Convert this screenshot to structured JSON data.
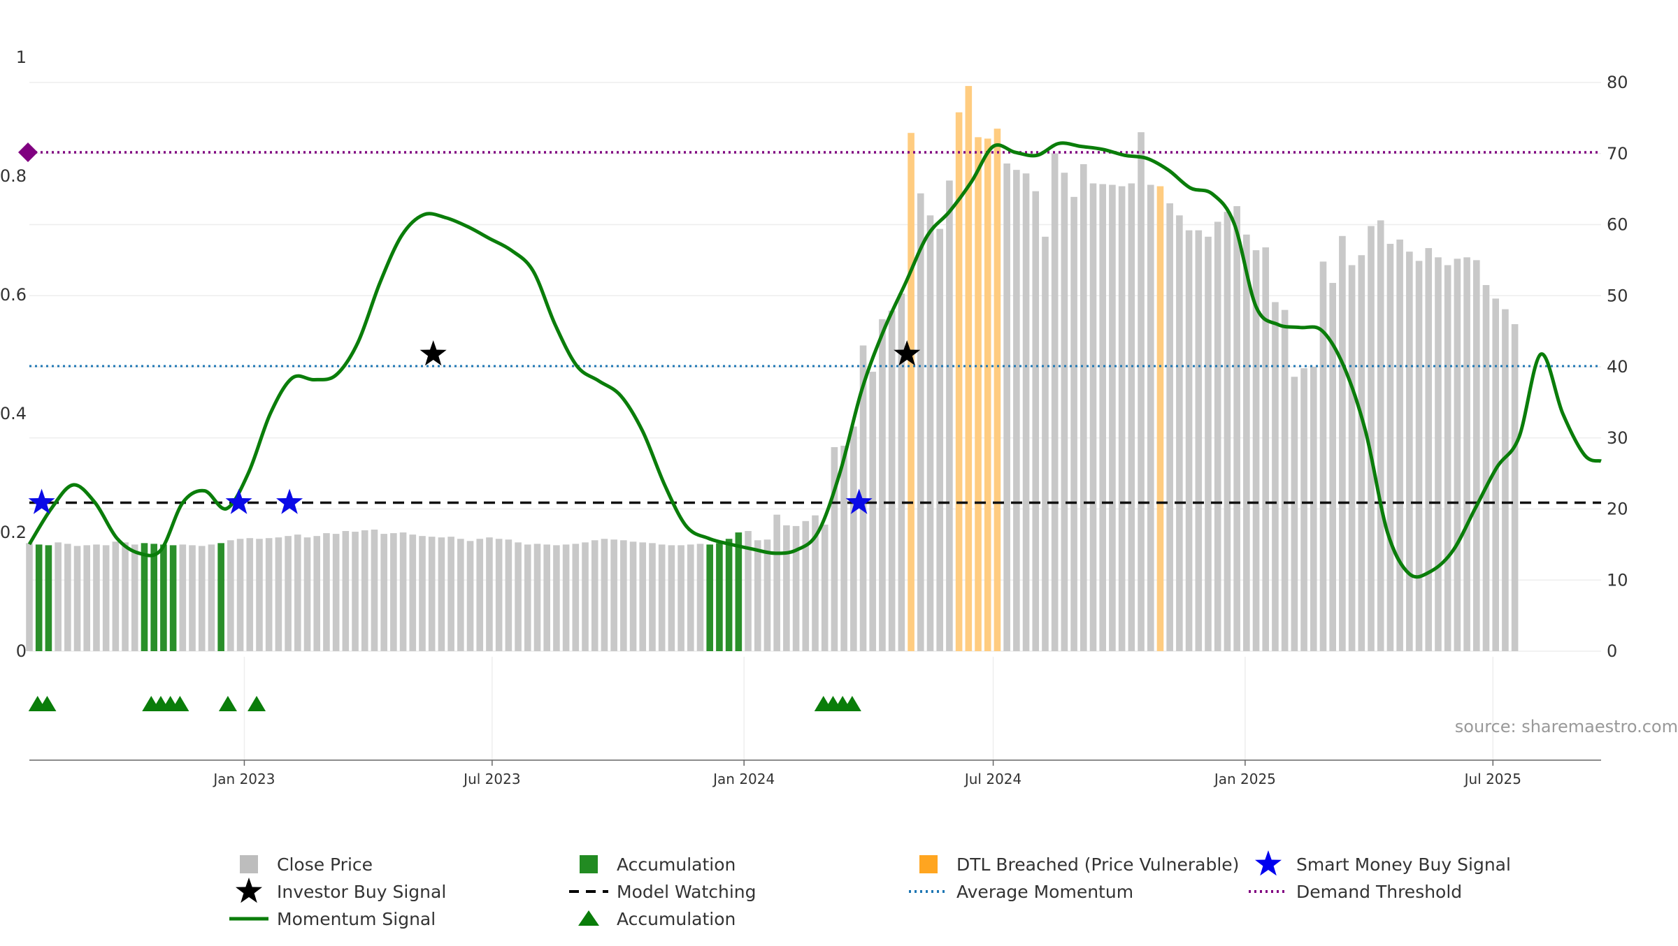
{
  "chart_data": {
    "type": "bar",
    "title": "",
    "source": "source: sharemaestro.com",
    "left_axis": {
      "ticks": [
        "0",
        "0.2",
        "0.4",
        "0.6",
        "0.8",
        "1"
      ],
      "values": [
        0,
        0.2,
        0.4,
        0.6,
        0.8,
        1
      ],
      "ylim": [
        0,
        1
      ]
    },
    "right_axis": {
      "ticks": [
        "0",
        "10",
        "20",
        "30",
        "40",
        "50",
        "60",
        "70",
        "80"
      ],
      "values": [
        0,
        10,
        20,
        30,
        40,
        50,
        60,
        70,
        80
      ],
      "ylim": [
        0,
        84
      ]
    },
    "x_axis": {
      "range": [
        "2022-07-28",
        "2025-09-18"
      ],
      "ticks": [
        {
          "label": "Jan 2023",
          "date": "2023-01-01"
        },
        {
          "label": "Jul 2023",
          "date": "2023-07-01"
        },
        {
          "label": "Jan 2024",
          "date": "2024-01-01"
        },
        {
          "label": "Jul 2024",
          "date": "2024-07-01"
        },
        {
          "label": "Jan 2025",
          "date": "2025-01-01"
        },
        {
          "label": "Jul 2025",
          "date": "2025-07-01"
        }
      ]
    },
    "bars": {
      "start_date": "2022-07-28",
      "step_days": 7,
      "close_price": [
        15.2,
        15.0,
        14.9,
        15.3,
        15.1,
        14.8,
        14.9,
        15.0,
        14.9,
        15.4,
        15.3,
        15.0,
        15.2,
        15.1,
        15.0,
        14.9,
        15.0,
        14.9,
        14.8,
        15.0,
        15.2,
        15.6,
        15.8,
        15.9,
        15.8,
        15.9,
        16.0,
        16.2,
        16.4,
        16.0,
        16.2,
        16.6,
        16.5,
        16.9,
        16.8,
        17.0,
        17.1,
        16.5,
        16.6,
        16.7,
        16.4,
        16.2,
        16.1,
        16.0,
        16.1,
        15.8,
        15.5,
        15.8,
        16.0,
        15.8,
        15.7,
        15.3,
        15.0,
        15.1,
        15.0,
        14.9,
        15.0,
        15.1,
        15.3,
        15.6,
        15.8,
        15.7,
        15.6,
        15.4,
        15.3,
        15.2,
        15.0,
        14.9,
        14.9,
        15.0,
        15.1,
        15.0,
        15.2,
        15.8,
        16.7,
        16.9,
        15.6,
        15.7,
        19.2,
        17.7,
        17.6,
        18.3,
        19.1,
        17.8,
        28.7,
        28.9,
        31.6,
        43.0,
        39.3,
        46.7,
        47.9,
        50.3,
        72.9,
        64.4,
        61.3,
        59.4,
        66.2,
        75.8,
        79.5,
        72.3,
        72.1,
        73.5,
        68.6,
        67.7,
        67.2,
        64.7,
        58.3,
        70.0,
        67.3,
        63.9,
        68.5,
        65.8,
        65.7,
        65.6,
        65.4,
        65.8,
        73.0,
        65.6,
        65.4,
        63.0,
        61.3,
        59.2,
        59.2,
        58.3,
        60.4,
        61.8,
        62.6,
        58.6,
        56.4,
        56.8,
        49.1,
        48.0,
        38.6,
        39.8,
        40.0,
        54.8,
        51.8,
        58.4,
        54.3,
        55.7,
        59.8,
        60.6,
        57.3,
        57.9,
        56.2,
        54.9,
        56.7,
        55.4,
        54.3,
        55.2,
        55.4,
        55.0,
        51.5,
        49.6,
        48.1,
        46.0
      ],
      "accumulation_bars": [
        1,
        2,
        12,
        13,
        14,
        15,
        20,
        71,
        72,
        73,
        74
      ],
      "dtl_breached_bars": [
        92,
        97,
        98,
        99,
        100,
        101,
        118
      ]
    },
    "momentum_signal": {
      "dates": [
        "2022-07-28",
        "2022-08-13",
        "2022-08-29",
        "2022-09-14",
        "2022-09-30",
        "2022-10-16",
        "2022-11-01",
        "2022-11-17",
        "2022-12-03",
        "2022-12-19",
        "2023-01-04",
        "2023-01-20",
        "2023-02-05",
        "2023-02-21",
        "2023-03-09",
        "2023-03-25",
        "2023-04-10",
        "2023-04-26",
        "2023-05-12",
        "2023-05-28",
        "2023-06-13",
        "2023-06-29",
        "2023-07-15",
        "2023-07-31",
        "2023-08-16",
        "2023-09-01",
        "2023-09-17",
        "2023-10-03",
        "2023-10-19",
        "2023-11-04",
        "2023-11-20",
        "2023-12-06",
        "2023-12-22",
        "2024-01-07",
        "2024-01-23",
        "2024-02-08",
        "2024-02-24",
        "2024-03-11",
        "2024-03-27",
        "2024-04-12",
        "2024-04-28",
        "2024-05-14",
        "2024-05-30",
        "2024-06-15",
        "2024-07-01",
        "2024-07-17",
        "2024-08-02",
        "2024-08-18",
        "2024-09-03",
        "2024-09-19",
        "2024-10-05",
        "2024-10-21",
        "2024-11-06",
        "2024-11-22",
        "2024-12-08",
        "2024-12-24",
        "2025-01-09",
        "2025-01-25",
        "2025-02-10",
        "2025-02-26",
        "2025-03-14",
        "2025-03-30",
        "2025-04-15",
        "2025-05-01",
        "2025-05-17",
        "2025-06-02",
        "2025-06-18",
        "2025-07-04",
        "2025-07-20",
        "2025-08-05",
        "2025-08-21",
        "2025-09-06",
        "2025-09-18"
      ],
      "values": [
        0.18,
        0.24,
        0.28,
        0.25,
        0.19,
        0.165,
        0.17,
        0.25,
        0.27,
        0.24,
        0.3,
        0.4,
        0.46,
        0.457,
        0.465,
        0.52,
        0.62,
        0.7,
        0.735,
        0.73,
        0.715,
        0.695,
        0.675,
        0.64,
        0.55,
        0.48,
        0.455,
        0.43,
        0.37,
        0.28,
        0.21,
        0.19,
        0.18,
        0.172,
        0.165,
        0.17,
        0.2,
        0.3,
        0.44,
        0.54,
        0.62,
        0.7,
        0.74,
        0.79,
        0.85,
        0.84,
        0.835,
        0.855,
        0.85,
        0.845,
        0.835,
        0.83,
        0.81,
        0.78,
        0.77,
        0.72,
        0.58,
        0.55,
        0.545,
        0.54,
        0.48,
        0.37,
        0.2,
        0.13,
        0.135,
        0.17,
        0.24,
        0.31,
        0.36,
        0.5,
        0.4,
        0.33,
        0.32
      ]
    },
    "reference_lines": {
      "model_watching": 0.25,
      "average_momentum": 0.48,
      "demand_threshold": 0.84
    },
    "smart_money_buy_signals": [
      {
        "date": "2022-08-06",
        "value": 0.25
      },
      {
        "date": "2022-12-28",
        "value": 0.25
      },
      {
        "date": "2023-02-03",
        "value": 0.25
      },
      {
        "date": "2024-03-25",
        "value": 0.25
      }
    ],
    "investor_buy_signals": [
      {
        "date": "2023-05-19",
        "value": 0.5
      },
      {
        "date": "2024-04-29",
        "value": 0.5
      }
    ],
    "accumulation_markers": [
      "2022-08-03",
      "2022-08-10",
      "2022-10-25",
      "2022-11-01",
      "2022-11-08",
      "2022-11-15",
      "2022-12-20",
      "2023-01-10",
      "2024-02-28",
      "2024-03-06",
      "2024-03-13",
      "2024-03-20"
    ],
    "demand_threshold_marker": {
      "value": 0.84
    },
    "legend": [
      {
        "label": "Close Price",
        "symbol": "square",
        "color": "#bdbdbd"
      },
      {
        "label": "Accumulation",
        "symbol": "square",
        "color": "#228b22"
      },
      {
        "label": "DTL Breached (Price Vulnerable)",
        "symbol": "square",
        "color": "#ffa520"
      },
      {
        "label": "Smart Money Buy Signal",
        "symbol": "star",
        "color": "#0000ee"
      },
      {
        "label": "Investor Buy Signal",
        "symbol": "star",
        "color": "#000000"
      },
      {
        "label": "Model Watching",
        "symbol": "dash",
        "color": "#000000"
      },
      {
        "label": "Average Momentum",
        "symbol": "dot",
        "color": "#1f77b4"
      },
      {
        "label": "Demand Threshold",
        "symbol": "dot",
        "color": "#800080"
      },
      {
        "label": "Momentum Signal",
        "symbol": "line",
        "color": "#0a7d0a"
      },
      {
        "label": "Accumulation",
        "symbol": "triangle",
        "color": "#0a7d0a"
      }
    ],
    "colors": {
      "close_price": "#c8c8c8",
      "accumulation": "#2a8f2a",
      "dtl": "#ffcc80",
      "momentum": "#0a7d0a",
      "model_watching": "#111111",
      "average_momentum": "#1f77b4",
      "demand_threshold": "#800080",
      "smart_money": "#0a0ae6",
      "investor": "#000000"
    }
  }
}
